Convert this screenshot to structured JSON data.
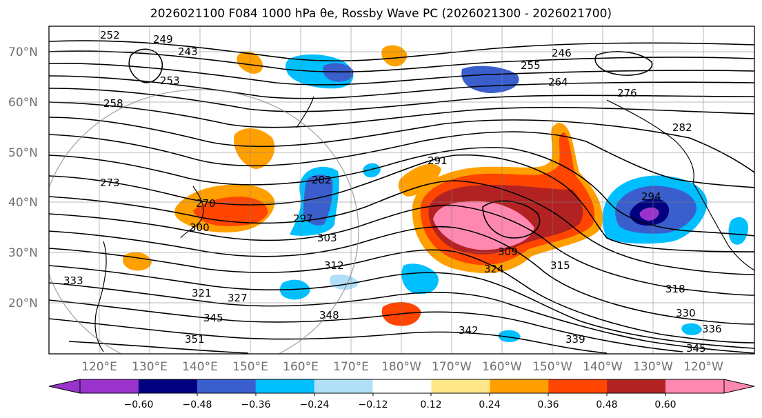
{
  "map": {
    "title": "2026021100 F084 1000 hPa θe, Rossby Wave PC (2026021300 - 2026021700)",
    "projection": "cylindrical",
    "lat_range": [
      10,
      75
    ],
    "lon_range": [
      110,
      250
    ],
    "lat_ticks": [
      "70°N",
      "60°N",
      "50°N",
      "40°N",
      "30°N",
      "20°N"
    ],
    "lon_ticks": [
      "120°E",
      "130°E",
      "140°E",
      "150°E",
      "160°E",
      "170°E",
      "180°W",
      "170°W",
      "160°W",
      "150°W",
      "140°W",
      "130°W",
      "120°W"
    ],
    "contour_labels": [
      "252",
      "249",
      "243",
      "253",
      "246",
      "258",
      "255",
      "264",
      "276",
      "282",
      "291",
      "282",
      "273",
      "270",
      "297",
      "303",
      "300",
      "312",
      "309",
      "315",
      "324",
      "327",
      "321",
      "318",
      "345",
      "348",
      "342",
      "339",
      "330",
      "336",
      "351",
      "345",
      "333",
      "294"
    ],
    "colorbar": {
      "tick_labels": [
        "−0.60",
        "−0.48",
        "−0.36",
        "−0.24",
        "−0.12",
        "0.12",
        "0.24",
        "0.36",
        "0.48",
        "0.60"
      ],
      "colors": [
        "#9933cc",
        "#000080",
        "#3a5fcd",
        "#00bfff",
        "#b0e0f8",
        "#ffffff",
        "#ffe88a",
        "#ffa000",
        "#ff4500",
        "#b22222",
        "#ff88b0",
        "#ff88b0"
      ]
    }
  }
}
